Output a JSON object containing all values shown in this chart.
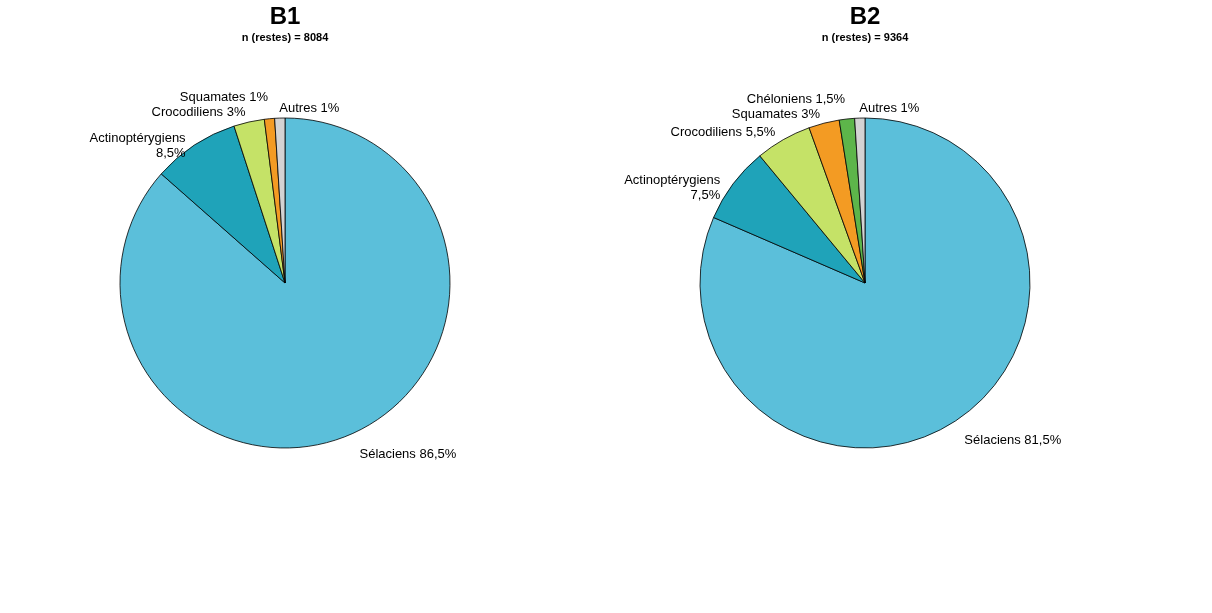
{
  "chart_data": [
    {
      "type": "pie",
      "title": "B1",
      "subtitle": "n (restes) = 8084",
      "categories": [
        "Sélaciens",
        "Actinoptérygiens",
        "Crocodiliens",
        "Squamates",
        "Autres"
      ],
      "values": [
        86.5,
        8.5,
        3,
        1,
        1
      ],
      "colors": [
        "#5bbfda",
        "#1fa3b9",
        "#c5e267",
        "#f39b23",
        "#d3d3d3"
      ],
      "value_labels": [
        "86,5%",
        "8,5%",
        "3%",
        "1%",
        "1%"
      ]
    },
    {
      "type": "pie",
      "title": "B2",
      "subtitle": "n (restes) = 9364",
      "categories": [
        "Sélaciens",
        "Actinoptérygiens",
        "Crocodiliens",
        "Squamates",
        "Chéloniens",
        "Autres"
      ],
      "values": [
        81.5,
        7.5,
        5.5,
        3,
        1.5,
        1
      ],
      "colors": [
        "#5bbfda",
        "#1fa3b9",
        "#c5e267",
        "#f39b23",
        "#5db54a",
        "#d3d3d3"
      ],
      "value_labels": [
        "81,5%",
        "7,5%",
        "5,5%",
        "3%",
        "1,5%",
        "1%"
      ]
    }
  ]
}
